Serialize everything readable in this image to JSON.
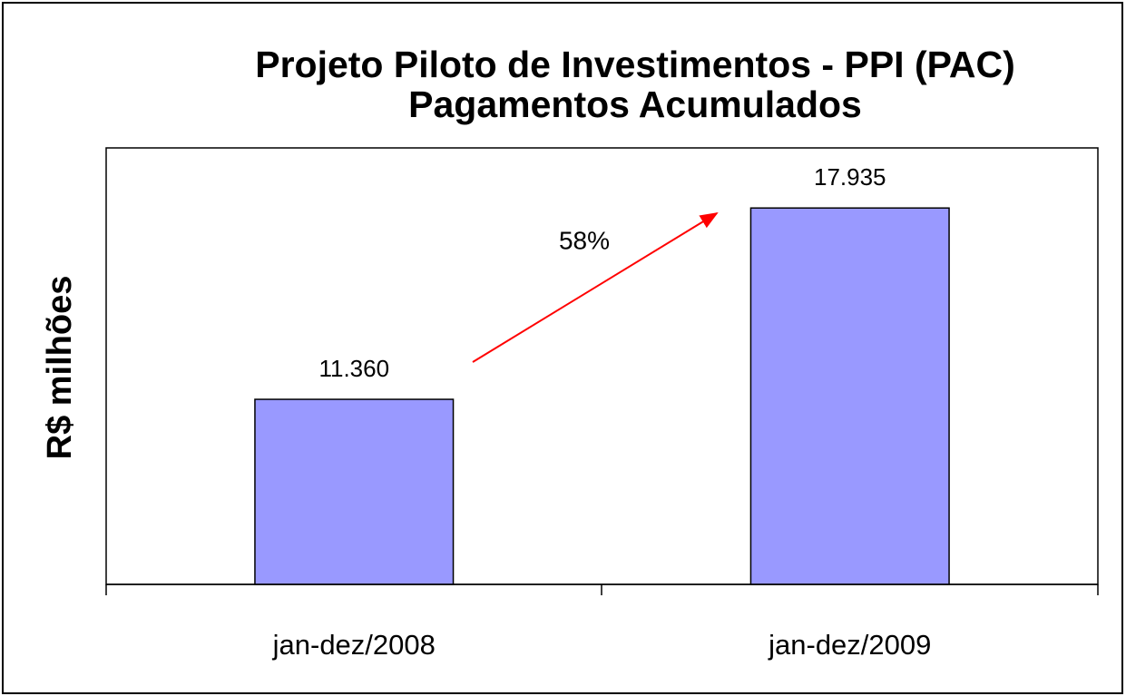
{
  "chart_data": {
    "type": "bar",
    "title": [
      "Projeto Piloto de Investimentos - PPI (PAC)",
      "Pagamentos Acumulados"
    ],
    "y_label": "R$ milhões",
    "categories": [
      "jan-dez/2008",
      "jan-dez/2009"
    ],
    "values": [
      11360,
      17935
    ],
    "value_labels": [
      "11.360",
      "17.935"
    ],
    "color": "#9999ff",
    "ylim": [
      5000,
      20000
    ],
    "annotation": "58%"
  }
}
